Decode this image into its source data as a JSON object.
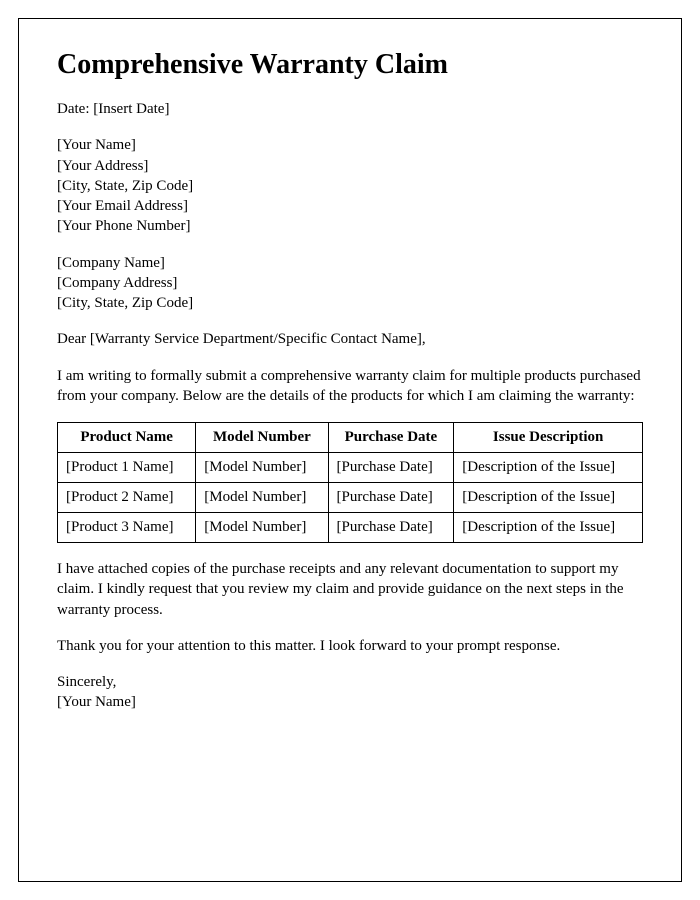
{
  "title": "Comprehensive Warranty Claim",
  "date_line": "Date: [Insert Date]",
  "sender": {
    "name": "[Your Name]",
    "address": "[Your Address]",
    "city_state_zip": "[City, State, Zip Code]",
    "email": "[Your Email Address]",
    "phone": "[Your Phone Number]"
  },
  "recipient": {
    "company": "[Company Name]",
    "address": "[Company Address]",
    "city_state_zip": "[City, State, Zip Code]"
  },
  "salutation": "Dear [Warranty Service Department/Specific Contact Name],",
  "intro": "I am writing to formally submit a comprehensive warranty claim for multiple products purchased from your company. Below are the details of the products for which I am claiming the warranty:",
  "table": {
    "columns": [
      "Product Name",
      "Model Number",
      "Purchase Date",
      "Issue Description"
    ],
    "rows": [
      [
        "[Product 1 Name]",
        "[Model Number]",
        "[Purchase Date]",
        "[Description of the Issue]"
      ],
      [
        "[Product 2 Name]",
        "[Model Number]",
        "[Purchase Date]",
        "[Description of the Issue]"
      ],
      [
        "[Product 3 Name]",
        "[Model Number]",
        "[Purchase Date]",
        "[Description of the Issue]"
      ]
    ]
  },
  "body2": "I have attached copies of the purchase receipts and any relevant documentation to support my claim. I kindly request that you review my claim and provide guidance on the next steps in the warranty process.",
  "body3": "Thank you for your attention to this matter. I look forward to your prompt response.",
  "closing": "Sincerely,",
  "signature": "[Your Name]"
}
